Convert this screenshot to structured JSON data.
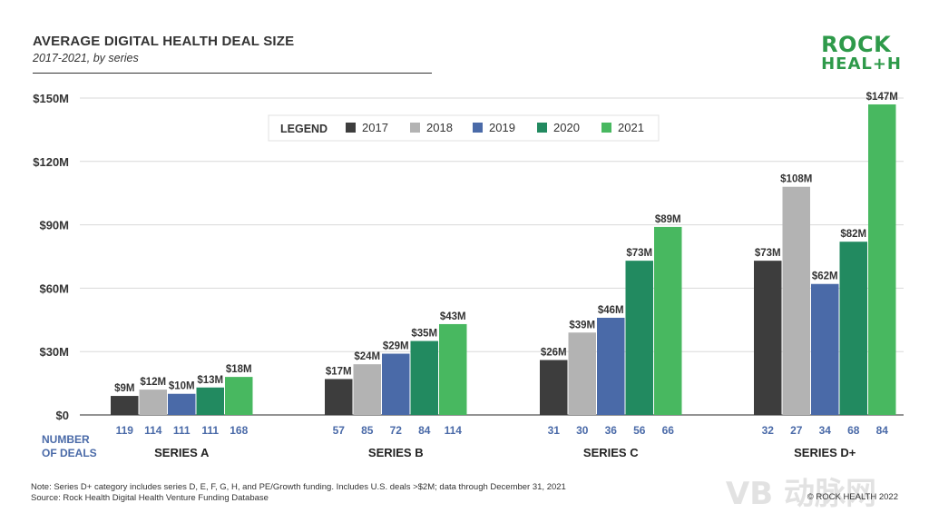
{
  "header": {
    "title": "AVERAGE DIGITAL HEALTH DEAL SIZE",
    "subtitle": "2017-2021, by series"
  },
  "logo": {
    "line1": "ROCK",
    "line2": "HEAL+H"
  },
  "legend": {
    "title": "LEGEND"
  },
  "number_of_deals_label": [
    "NUMBER",
    "OF DEALS"
  ],
  "footnote": {
    "line1": "Note: Series D+ category includes series D, E, F, G, H, and PE/Growth funding. Includes U.S. deals >$2M; data through December 31, 2021",
    "line2": "Source: Rock Health Digital Health Venture Funding Database"
  },
  "copyright": "© ROCK HEALTH 2022",
  "watermark": "VB 动脉网",
  "colors": {
    "2017": "#3d3d3d",
    "2018": "#b3b3b3",
    "2019": "#4a6aa8",
    "2020": "#228a60",
    "2021": "#48b860",
    "deal_count_text": "#4a6aa8",
    "gridline": "#d9d9d9"
  },
  "chart_data": {
    "type": "bar",
    "title": "AVERAGE DIGITAL HEALTH DEAL SIZE",
    "subtitle": "2017-2021, by series",
    "categories": [
      "SERIES A",
      "SERIES B",
      "SERIES C",
      "SERIES D+"
    ],
    "ylim": [
      0,
      150
    ],
    "yticks": [
      0,
      30,
      60,
      90,
      120,
      150
    ],
    "ytick_labels": [
      "$0",
      "$30M",
      "$60M",
      "$90M",
      "$120M",
      "$150M"
    ],
    "grid": true,
    "legend_position": "top-center",
    "series": [
      {
        "name": "2017",
        "values": [
          9,
          17,
          26,
          73
        ],
        "labels": [
          "$9M",
          "$17M",
          "$26M",
          "$73M"
        ],
        "deals": [
          119,
          57,
          31,
          32
        ]
      },
      {
        "name": "2018",
        "values": [
          12,
          24,
          39,
          108
        ],
        "labels": [
          "$12M",
          "$24M",
          "$39M",
          "$108M"
        ],
        "deals": [
          114,
          85,
          30,
          27
        ]
      },
      {
        "name": "2019",
        "values": [
          10,
          29,
          46,
          62
        ],
        "labels": [
          "$10M",
          "$29M",
          "$46M",
          "$62M"
        ],
        "deals": [
          111,
          72,
          36,
          34
        ]
      },
      {
        "name": "2020",
        "values": [
          13,
          35,
          73,
          82
        ],
        "labels": [
          "$13M",
          "$35M",
          "$73M",
          "$82M"
        ],
        "deals": [
          111,
          84,
          56,
          68
        ]
      },
      {
        "name": "2021",
        "values": [
          18,
          43,
          89,
          147
        ],
        "labels": [
          "$18M",
          "$43M",
          "$89M",
          "$147M"
        ],
        "deals": [
          168,
          114,
          66,
          84
        ]
      }
    ]
  }
}
